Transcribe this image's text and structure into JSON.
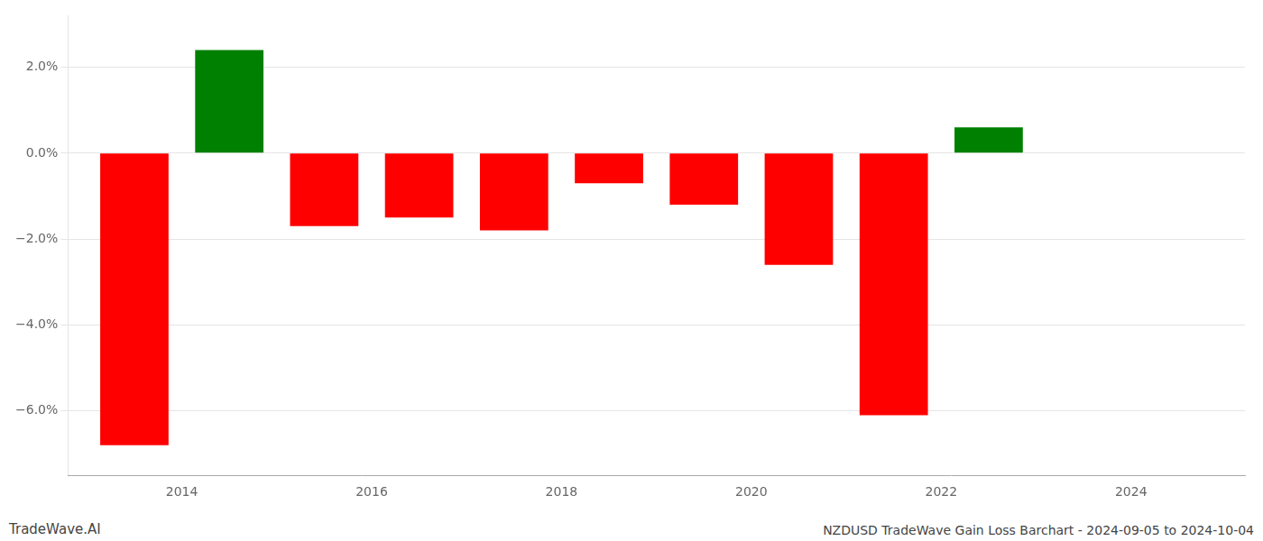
{
  "chart_data": {
    "type": "bar",
    "x": [
      2013.5,
      2014.5,
      2015.5,
      2016.5,
      2017.5,
      2018.5,
      2019.5,
      2020.5,
      2021.5,
      2022.5
    ],
    "values": [
      -6.8,
      2.4,
      -1.7,
      -1.5,
      -1.8,
      -0.7,
      -1.2,
      -2.6,
      -6.1,
      0.6
    ],
    "colors": [
      "#ff0000",
      "#008000",
      "#ff0000",
      "#ff0000",
      "#ff0000",
      "#ff0000",
      "#ff0000",
      "#ff0000",
      "#ff0000",
      "#008000"
    ],
    "xlim": [
      2012.8,
      2025.2
    ],
    "xticks": [
      2014,
      2016,
      2018,
      2020,
      2022,
      2024
    ],
    "ylim": [
      -7.5,
      3.2
    ],
    "yticks": [
      {
        "value": -6.0,
        "label": "−6.0%"
      },
      {
        "value": -4.0,
        "label": "−4.0%"
      },
      {
        "value": -2.0,
        "label": "−2.0%"
      },
      {
        "value": 0.0,
        "label": "0.0%"
      },
      {
        "value": 2.0,
        "label": "2.0%"
      }
    ],
    "grid": true,
    "annotations": [
      "TradeWave.AI",
      "NZDUSD TradeWave Gain Loss Barchart - 2024-09-05 to 2024-10-04"
    ]
  }
}
